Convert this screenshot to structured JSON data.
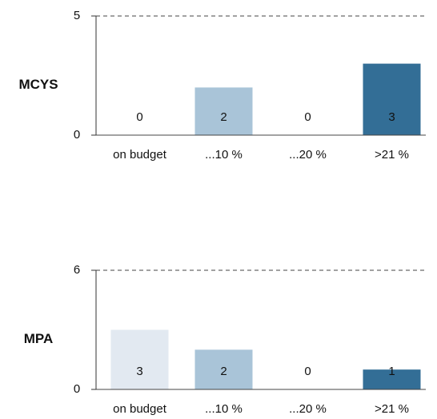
{
  "chart_data": [
    {
      "type": "bar",
      "title": "MCYS",
      "categories": [
        "on budget",
        "...10 %",
        "...20 %",
        ">21 %"
      ],
      "values": [
        0,
        2,
        0,
        3
      ],
      "colors": [
        "#e2e9f1",
        "#a9c4d8",
        "#7ba3c0",
        "#336e96"
      ],
      "ylim": [
        0,
        5
      ],
      "yticks": [
        0,
        5
      ],
      "grid": true
    },
    {
      "type": "bar",
      "title": "MPA",
      "categories": [
        "on budget",
        "...10 %",
        "...20 %",
        ">21 %"
      ],
      "values": [
        3,
        2,
        0,
        1
      ],
      "colors": [
        "#e2e9f1",
        "#a9c4d8",
        "#7ba3c0",
        "#336e96"
      ],
      "ylim": [
        0,
        6
      ],
      "yticks": [
        0,
        6
      ],
      "grid": true
    }
  ]
}
